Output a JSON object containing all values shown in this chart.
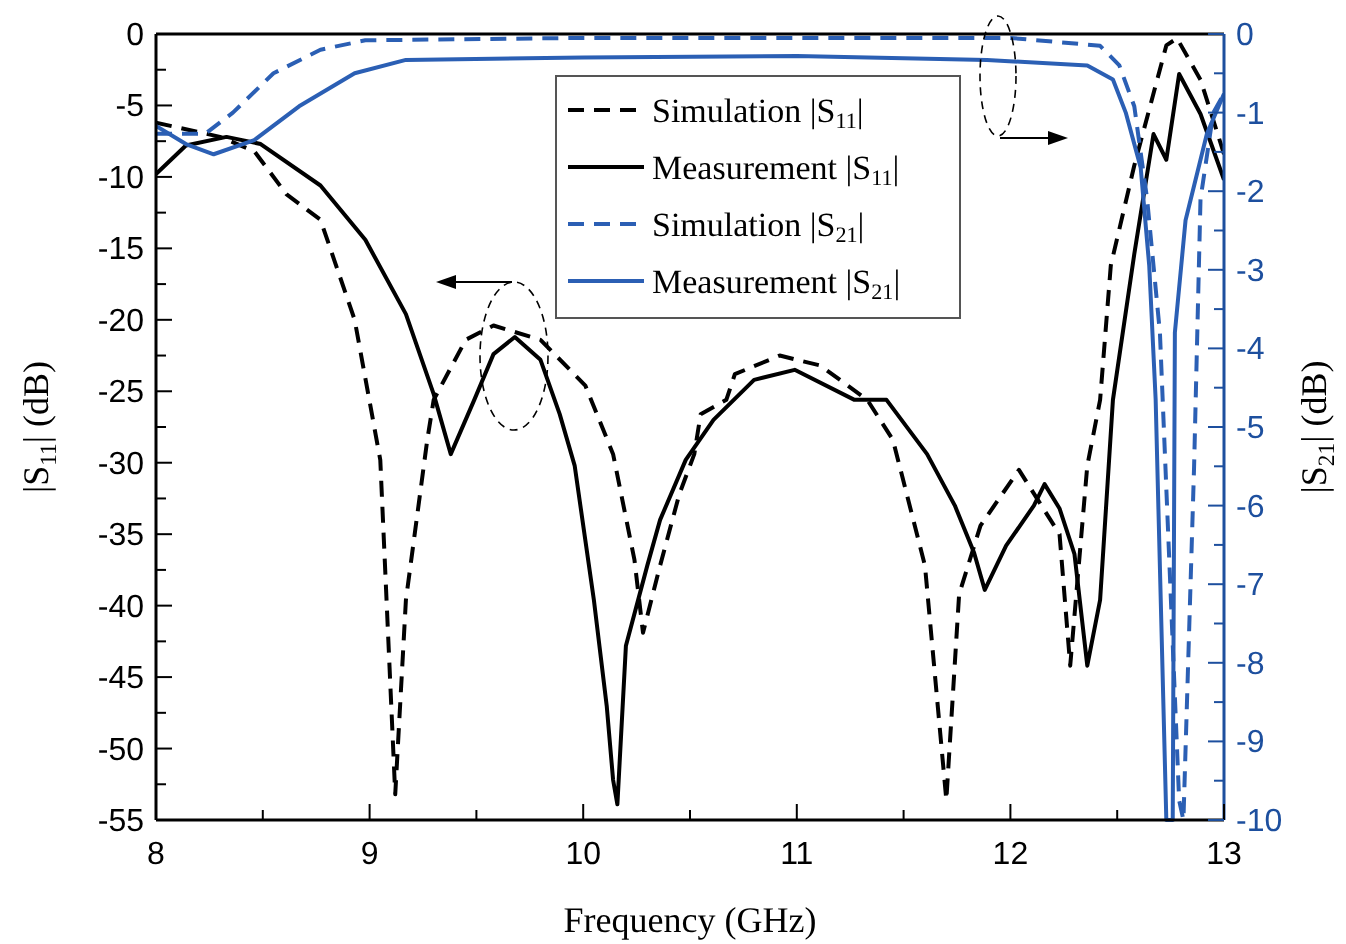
{
  "chart_data": {
    "type": "line",
    "xlabel": "Frequency (GHz)",
    "ylabel": "|S$_{11}$| (dB)",
    "y2label": "|S$_{21}$| (dB)",
    "xlim": [
      8,
      13
    ],
    "xticks": [
      8,
      {
        "value": 8.5,
        "label": null
      },
      9,
      {
        "value": 9.5,
        "label": null
      },
      10,
      {
        "value": 10.5,
        "label": null
      },
      11,
      {
        "value": 11.5,
        "label": null
      },
      12,
      {
        "value": 12.5,
        "label": null
      },
      13
    ],
    "ylim": [
      -55,
      0
    ],
    "yticks": [
      -55,
      {
        "value": -52.5,
        "label": null
      },
      -50,
      {
        "value": -47.5,
        "label": null
      },
      -45,
      {
        "value": -42.5,
        "label": null
      },
      -40,
      {
        "value": -37.5,
        "label": null
      },
      -35,
      {
        "value": -32.5,
        "label": null
      },
      -30,
      {
        "value": -27.5,
        "label": null
      },
      -25,
      {
        "value": -22.5,
        "label": null
      },
      -20,
      {
        "value": -17.5,
        "label": null
      },
      -15,
      {
        "value": -12.5,
        "label": null
      },
      -10,
      {
        "value": -7.5,
        "label": null
      },
      -5,
      {
        "value": -2.5,
        "label": null
      },
      0
    ],
    "y2lim": [
      -10,
      0
    ],
    "y2ticks": [
      -10,
      {
        "value": -9.5,
        "label": null
      },
      -9,
      {
        "value": -8.5,
        "label": null
      },
      -8,
      {
        "value": -7.5,
        "label": null
      },
      -7,
      {
        "value": -6.5,
        "label": null
      },
      -6,
      {
        "value": -5.5,
        "label": null
      },
      -5,
      {
        "value": -4.5,
        "label": null
      },
      -4,
      {
        "value": -3.5,
        "label": null
      },
      -3,
      {
        "value": -2.5,
        "label": null
      },
      -2,
      {
        "value": -1.5,
        "label": null
      },
      -1,
      {
        "value": -0.5,
        "label": null
      },
      0
    ],
    "grid": false,
    "legend": "top right",
    "series": [
      {
        "name": "Simulation |S$_{11}$|",
        "color": "#000000",
        "line_style": "dashed",
        "x": [
          8,
          8.3,
          8.46,
          8.61,
          8.77,
          8.93,
          9.05,
          9.12,
          9.17,
          9.27,
          9.3,
          9.45,
          9.58,
          9.8,
          10.01,
          10.14,
          10.24,
          10.28,
          10.36,
          10.45,
          10.52,
          10.55,
          10.67,
          10.71,
          10.92,
          11.11,
          11.33,
          11.45,
          11.6,
          11.7,
          11.76,
          11.86,
          12.04,
          12.23,
          12.28,
          12.36,
          12.42,
          12.47,
          12.58,
          12.73,
          12.78,
          12.89,
          13
        ],
        "values": [
          -6.2,
          -7.2,
          -8.2,
          -11.2,
          -13,
          -20,
          -29.8,
          -53.2,
          -39.6,
          -28.4,
          -25.6,
          -21.4,
          -20.4,
          -21.4,
          -24.6,
          -29.4,
          -36.8,
          -41.9,
          -37.2,
          -32.2,
          -29.4,
          -26.6,
          -25.6,
          -23.8,
          -22.5,
          -23.2,
          -25.6,
          -28.4,
          -37.2,
          -53.6,
          -39.2,
          -34.4,
          -30.5,
          -35,
          -44.2,
          -30.2,
          -25.6,
          -16.2,
          -9.2,
          -0.8,
          -0.3,
          -3.2,
          -8.4
        ]
      },
      {
        "name": "Measurement |S$_{11}$|",
        "color": "#000000",
        "line_style": "solid",
        "x": [
          8,
          8.14,
          8.33,
          8.49,
          8.77,
          8.98,
          9.17,
          9.3,
          9.38,
          9.49,
          9.58,
          9.68,
          9.8,
          9.89,
          9.96,
          10.05,
          10.11,
          10.14,
          10.16,
          10.2,
          10.3,
          10.36,
          10.48,
          10.61,
          10.8,
          10.99,
          11.27,
          11.42,
          11.61,
          11.74,
          11.83,
          11.88,
          11.98,
          12.11,
          12.16,
          12.23,
          12.3,
          12.36,
          12.42,
          12.48,
          12.58,
          12.67,
          12.73,
          12.79,
          12.89,
          13
        ],
        "values": [
          -9.8,
          -7.8,
          -7.2,
          -7.7,
          -10.6,
          -14.4,
          -19.6,
          -25.2,
          -29.4,
          -25.6,
          -22.4,
          -21.2,
          -22.8,
          -26.6,
          -30.2,
          -39.6,
          -47,
          -52.2,
          -53.9,
          -42.8,
          -37.2,
          -34,
          -29.8,
          -27,
          -24.2,
          -23.5,
          -25.6,
          -25.6,
          -29.4,
          -33,
          -36.3,
          -38.9,
          -35.8,
          -33,
          -31.5,
          -33.2,
          -36.4,
          -44.2,
          -39.6,
          -25.6,
          -15.4,
          -7,
          -8.8,
          -2.8,
          -5.6,
          -10.2
        ]
      },
      {
        "name": "Simulation |S$_{21}$|",
        "color": "#2b5fb4",
        "line_style": "dashed",
        "axis": "y2",
        "x": [
          8,
          8.23,
          8.36,
          8.55,
          8.77,
          8.98,
          10,
          11,
          12,
          12.42,
          12.51,
          12.58,
          12.64,
          12.7,
          12.79,
          12.81,
          12.86,
          12.89,
          12.95,
          13
        ],
        "values": [
          -1.27,
          -1.27,
          -1,
          -0.5,
          -0.2,
          -0.08,
          -0.05,
          -0.05,
          -0.05,
          -0.15,
          -0.4,
          -0.92,
          -2.1,
          -3.8,
          -9.75,
          -10,
          -5.5,
          -2.1,
          -1,
          -0.76
        ]
      },
      {
        "name": "Measurement |S$_{21}$|",
        "color": "#2b5fb4",
        "line_style": "solid",
        "axis": "y2",
        "x": [
          8,
          8.14,
          8.27,
          8.46,
          8.67,
          8.93,
          9.17,
          10,
          11,
          11.89,
          12.36,
          12.48,
          12.54,
          12.61,
          12.65,
          12.68,
          12.73,
          12.76,
          12.77,
          12.82,
          12.92,
          13
        ],
        "values": [
          -1.17,
          -1.4,
          -1.53,
          -1.35,
          -0.92,
          -0.5,
          -0.33,
          -0.3,
          -0.28,
          -0.33,
          -0.4,
          -0.58,
          -1,
          -1.7,
          -2.95,
          -4.65,
          -10,
          -10,
          -3.8,
          -2.37,
          -1.27,
          -0.76
        ]
      }
    ]
  }
}
